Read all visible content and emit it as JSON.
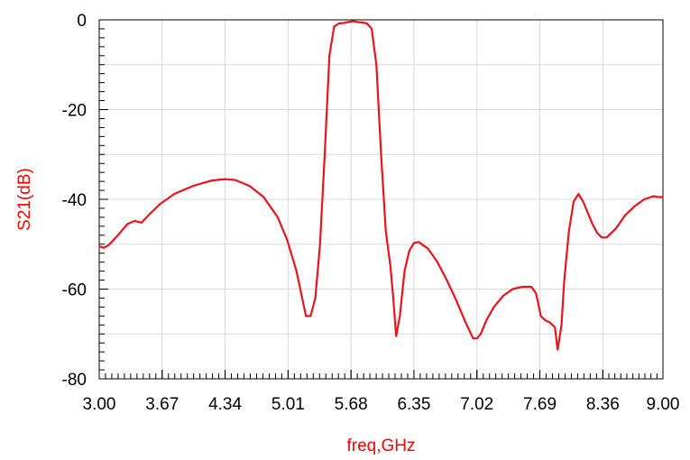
{
  "chart_data": {
    "type": "line",
    "title": "",
    "xlabel": "freq,GHz",
    "ylabel": "S21(dB)",
    "xlim": [
      3.0,
      9.0
    ],
    "ylim": [
      -80,
      0
    ],
    "grid": true,
    "x_ticks": [
      "3.00",
      "3.67",
      "4.34",
      "5.01",
      "5.68",
      "6.35",
      "7.02",
      "7.69",
      "8.36",
      "9.00"
    ],
    "y_ticks": [
      "0",
      "-20",
      "-40",
      "-60",
      "-80"
    ],
    "label_color": "#ff0000",
    "series": [
      {
        "color": "#e8141e",
        "x": [
          3.0,
          3.05,
          3.1,
          3.2,
          3.3,
          3.38,
          3.45,
          3.55,
          3.65,
          3.8,
          4.0,
          4.2,
          4.34,
          4.45,
          4.6,
          4.75,
          4.9,
          5.0,
          5.1,
          5.15,
          5.2,
          5.25,
          5.3,
          5.35,
          5.4,
          5.45,
          5.5,
          5.55,
          5.6,
          5.65,
          5.7,
          5.75,
          5.8,
          5.85,
          5.9,
          5.95,
          6.0,
          6.05,
          6.1,
          6.13,
          6.16,
          6.2,
          6.25,
          6.3,
          6.35,
          6.4,
          6.5,
          6.6,
          6.7,
          6.8,
          6.9,
          6.98,
          7.02,
          7.06,
          7.12,
          7.2,
          7.3,
          7.4,
          7.5,
          7.6,
          7.65,
          7.7,
          7.75,
          7.8,
          7.85,
          7.88,
          7.92,
          7.95,
          8.0,
          8.05,
          8.1,
          8.15,
          8.2,
          8.25,
          8.3,
          8.35,
          8.4,
          8.45,
          8.5,
          8.55,
          8.6,
          8.7,
          8.8,
          8.9,
          8.95,
          9.0
        ],
        "y": [
          -50.5,
          -50.8,
          -50.2,
          -48,
          -45.5,
          -44.8,
          -45.2,
          -43,
          -41,
          -38.8,
          -37,
          -35.8,
          -35.5,
          -35.7,
          -37,
          -39.5,
          -44,
          -49,
          -56,
          -61,
          -66,
          -66,
          -62,
          -50,
          -30,
          -8,
          -1.5,
          -0.8,
          -0.7,
          -0.5,
          -0.3,
          -0.5,
          -0.6,
          -0.8,
          -2,
          -10,
          -30,
          -47,
          -55,
          -62,
          -70.5,
          -66,
          -56,
          -51.5,
          -49.7,
          -49.5,
          -51,
          -54,
          -58,
          -62.5,
          -67.5,
          -71,
          -71,
          -70,
          -67,
          -64,
          -61.5,
          -60,
          -59.5,
          -59.5,
          -61,
          -66,
          -67,
          -67.5,
          -68.5,
          -73.5,
          -68,
          -58,
          -47,
          -40.5,
          -38.8,
          -40.5,
          -43,
          -45.5,
          -47.5,
          -48.5,
          -48.5,
          -47.5,
          -46.5,
          -45,
          -43.5,
          -41.5,
          -40,
          -39.3,
          -39.5,
          -39.5
        ]
      }
    ]
  }
}
